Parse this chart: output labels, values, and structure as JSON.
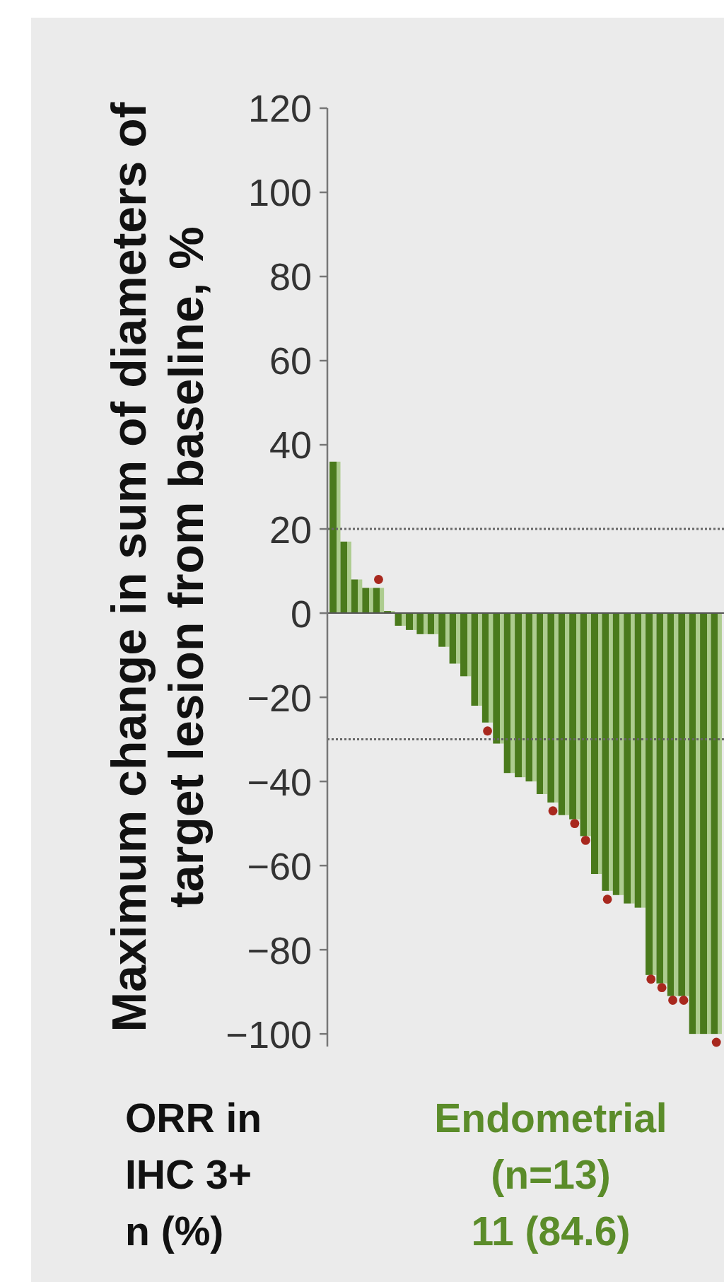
{
  "chart_data": {
    "type": "bar",
    "ylabel": "Maximum change in sum of diameters of\ntarget lesion from baseline, %",
    "categories": [
      null,
      null,
      null,
      null,
      null,
      null,
      null,
      null,
      null,
      null,
      null,
      null,
      null,
      null,
      null,
      null,
      null,
      null,
      null,
      null,
      null,
      null,
      null,
      null,
      null,
      null,
      null,
      null,
      null,
      null,
      null,
      null,
      null,
      null,
      null,
      null
    ],
    "series": [
      {
        "type": "bar",
        "color": "#4a7a1c",
        "values": [
          36,
          17,
          8,
          6,
          6,
          0.5,
          -3,
          -4,
          -5,
          -5,
          -8,
          -12,
          -15,
          -22,
          -26,
          -31,
          -38,
          -39,
          -40,
          -43,
          -45,
          -48,
          -49,
          -53,
          -62,
          -66,
          -67,
          -69,
          -70,
          -86,
          -88,
          -91,
          -91,
          -100,
          -100,
          -100
        ]
      },
      {
        "type": "scatter",
        "color": "#a8281e",
        "values": [
          null,
          null,
          null,
          null,
          8,
          null,
          null,
          null,
          null,
          null,
          null,
          null,
          null,
          null,
          -28,
          null,
          null,
          null,
          null,
          null,
          -47,
          null,
          -50,
          -54,
          null,
          -68,
          null,
          null,
          null,
          -87,
          -89,
          -92,
          -92,
          null,
          null,
          -102
        ]
      }
    ],
    "ylim": [
      -103,
      120
    ],
    "yticks": [
      120,
      100,
      80,
      60,
      40,
      20,
      0,
      {
        "value": -20,
        "label": "−20"
      },
      {
        "value": -40,
        "label": "−40"
      },
      {
        "value": -60,
        "label": "−60"
      },
      {
        "value": -80,
        "label": "−80"
      },
      {
        "value": -100,
        "label": "−100"
      }
    ],
    "ref_lines": [
      {
        "axis": "y",
        "value": 20,
        "color": "#666666",
        "line_style": "dotted"
      },
      {
        "axis": "y",
        "value": -30,
        "color": "#666666",
        "line_style": "dotted"
      }
    ],
    "annotations": [
      "ORR in\nIHC 3+\nn (%)",
      "Endometrial\n(n=13)\n11 (84.6)"
    ],
    "tick_labels": "y",
    "marker": "circle"
  }
}
